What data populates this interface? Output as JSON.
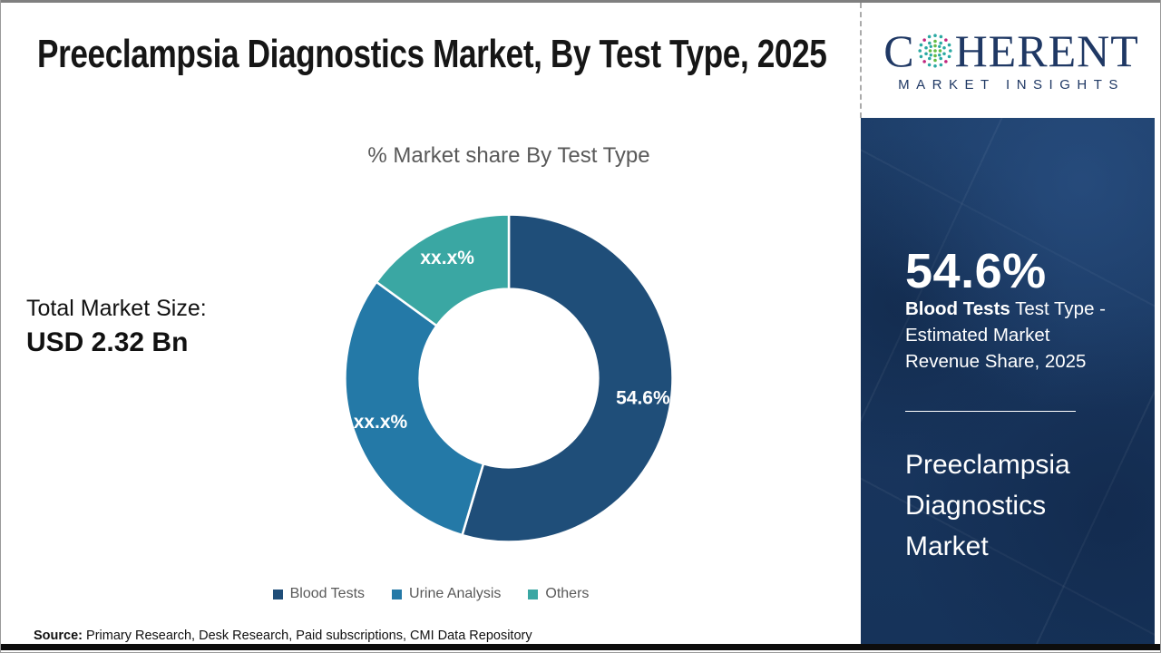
{
  "header": {
    "title": "Preeclampsia Diagnostics Market, By Test Type, 2025"
  },
  "logo": {
    "word_c": "C",
    "word_rest": "HERENT",
    "subtitle": "MARKET INSIGHTS",
    "globe_icon": "dotted-globe",
    "navy": "#1f3864",
    "dot_teal": "#2aa9a2",
    "dot_green": "#63bb46",
    "dot_magenta": "#c0267e"
  },
  "left_stats": {
    "total_label": "Total Market Size:",
    "total_value": "USD 2.32 Bn"
  },
  "chart_data": {
    "type": "pie",
    "subtype": "donut",
    "title": "% Market share By Test Type",
    "categories": [
      "Blood Tests",
      "Urine Analysis",
      "Others"
    ],
    "values": [
      54.6,
      30.4,
      15.0
    ],
    "display_labels": [
      "54.6%",
      "xx.x%",
      "xx.x%"
    ],
    "colors": [
      "#1F4E79",
      "#2479A7",
      "#3AA7A3"
    ],
    "legend_position": "bottom",
    "hole_radius_ratio": 0.545,
    "start_angle_deg": 0,
    "direction": "clockwise",
    "label_color": "#ffffff",
    "title_color": "#595959"
  },
  "panel": {
    "headline_value": "54.6%",
    "caption_bold": "Blood Tests",
    "caption_rest": " Test Type - Estimated Market Revenue Share, 2025",
    "market_name": "Preeclampsia Diagnostics Market",
    "bg_color": "#18355d"
  },
  "source": {
    "label": "Source:",
    "text": " Primary Research, Desk Research, Paid subscriptions, CMI Data Repository"
  }
}
